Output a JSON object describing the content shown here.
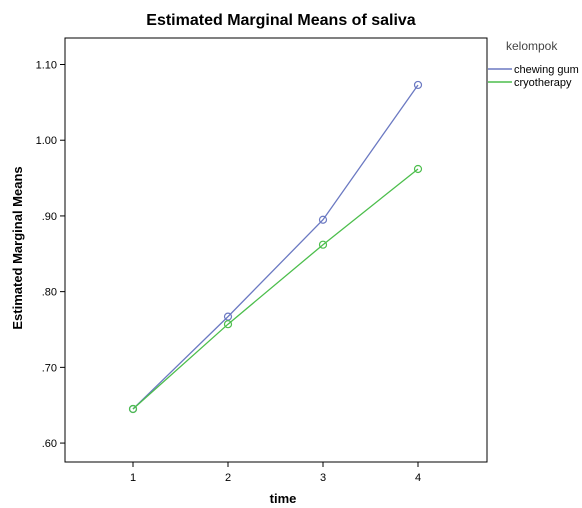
{
  "chart_data": {
    "type": "line",
    "title": "Estimated Marginal Means of saliva",
    "xlabel": "time",
    "ylabel": "Estimated Marginal Means",
    "categories": [
      "1",
      "2",
      "3",
      "4"
    ],
    "ylim": [
      0.575,
      1.135
    ],
    "yticks": [
      {
        "value": 0.6,
        "label": ".60"
      },
      {
        "value": 0.7,
        "label": ".70"
      },
      {
        "value": 0.8,
        "label": ".80"
      },
      {
        "value": 0.9,
        "label": ".90"
      },
      {
        "value": 1.0,
        "label": "1.00"
      },
      {
        "value": 1.1,
        "label": "1.10"
      }
    ],
    "grid": false,
    "legend": {
      "title": "kelompok",
      "placement": "right"
    },
    "series": [
      {
        "name": "chewing gum",
        "color": "#6b79c2",
        "values": [
          0.645,
          0.767,
          0.895,
          1.073
        ]
      },
      {
        "name": "cryotherapy",
        "color": "#4cbe4c",
        "values": [
          0.645,
          0.757,
          0.862,
          0.962
        ]
      }
    ]
  }
}
